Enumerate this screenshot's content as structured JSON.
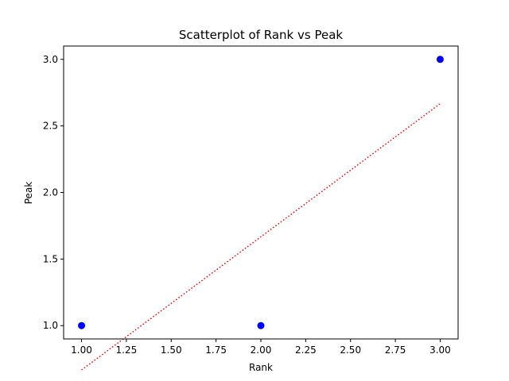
{
  "chart_data": {
    "type": "scatter",
    "title": "Scatterplot of Rank vs Peak",
    "xlabel": "Rank",
    "ylabel": "Peak",
    "xlim": [
      0.9,
      3.1
    ],
    "ylim": [
      0.9,
      3.1
    ],
    "xticks": [
      "1.00",
      "1.25",
      "1.50",
      "1.75",
      "2.00",
      "2.25",
      "2.50",
      "2.75",
      "3.00"
    ],
    "yticks": [
      "1.0",
      "1.5",
      "2.0",
      "2.5",
      "3.0"
    ],
    "grid": false,
    "series": [
      {
        "type": "scatter",
        "color": "#0000ff",
        "points": [
          {
            "x": 1.0,
            "y": 1.0
          },
          {
            "x": 2.0,
            "y": 1.0
          },
          {
            "x": 3.0,
            "y": 3.0
          }
        ]
      },
      {
        "type": "line",
        "style": "dotted",
        "color": "#ff0000",
        "points": [
          {
            "x": 1.0,
            "y": 0.667
          },
          {
            "x": 3.0,
            "y": 2.667
          }
        ]
      }
    ]
  }
}
